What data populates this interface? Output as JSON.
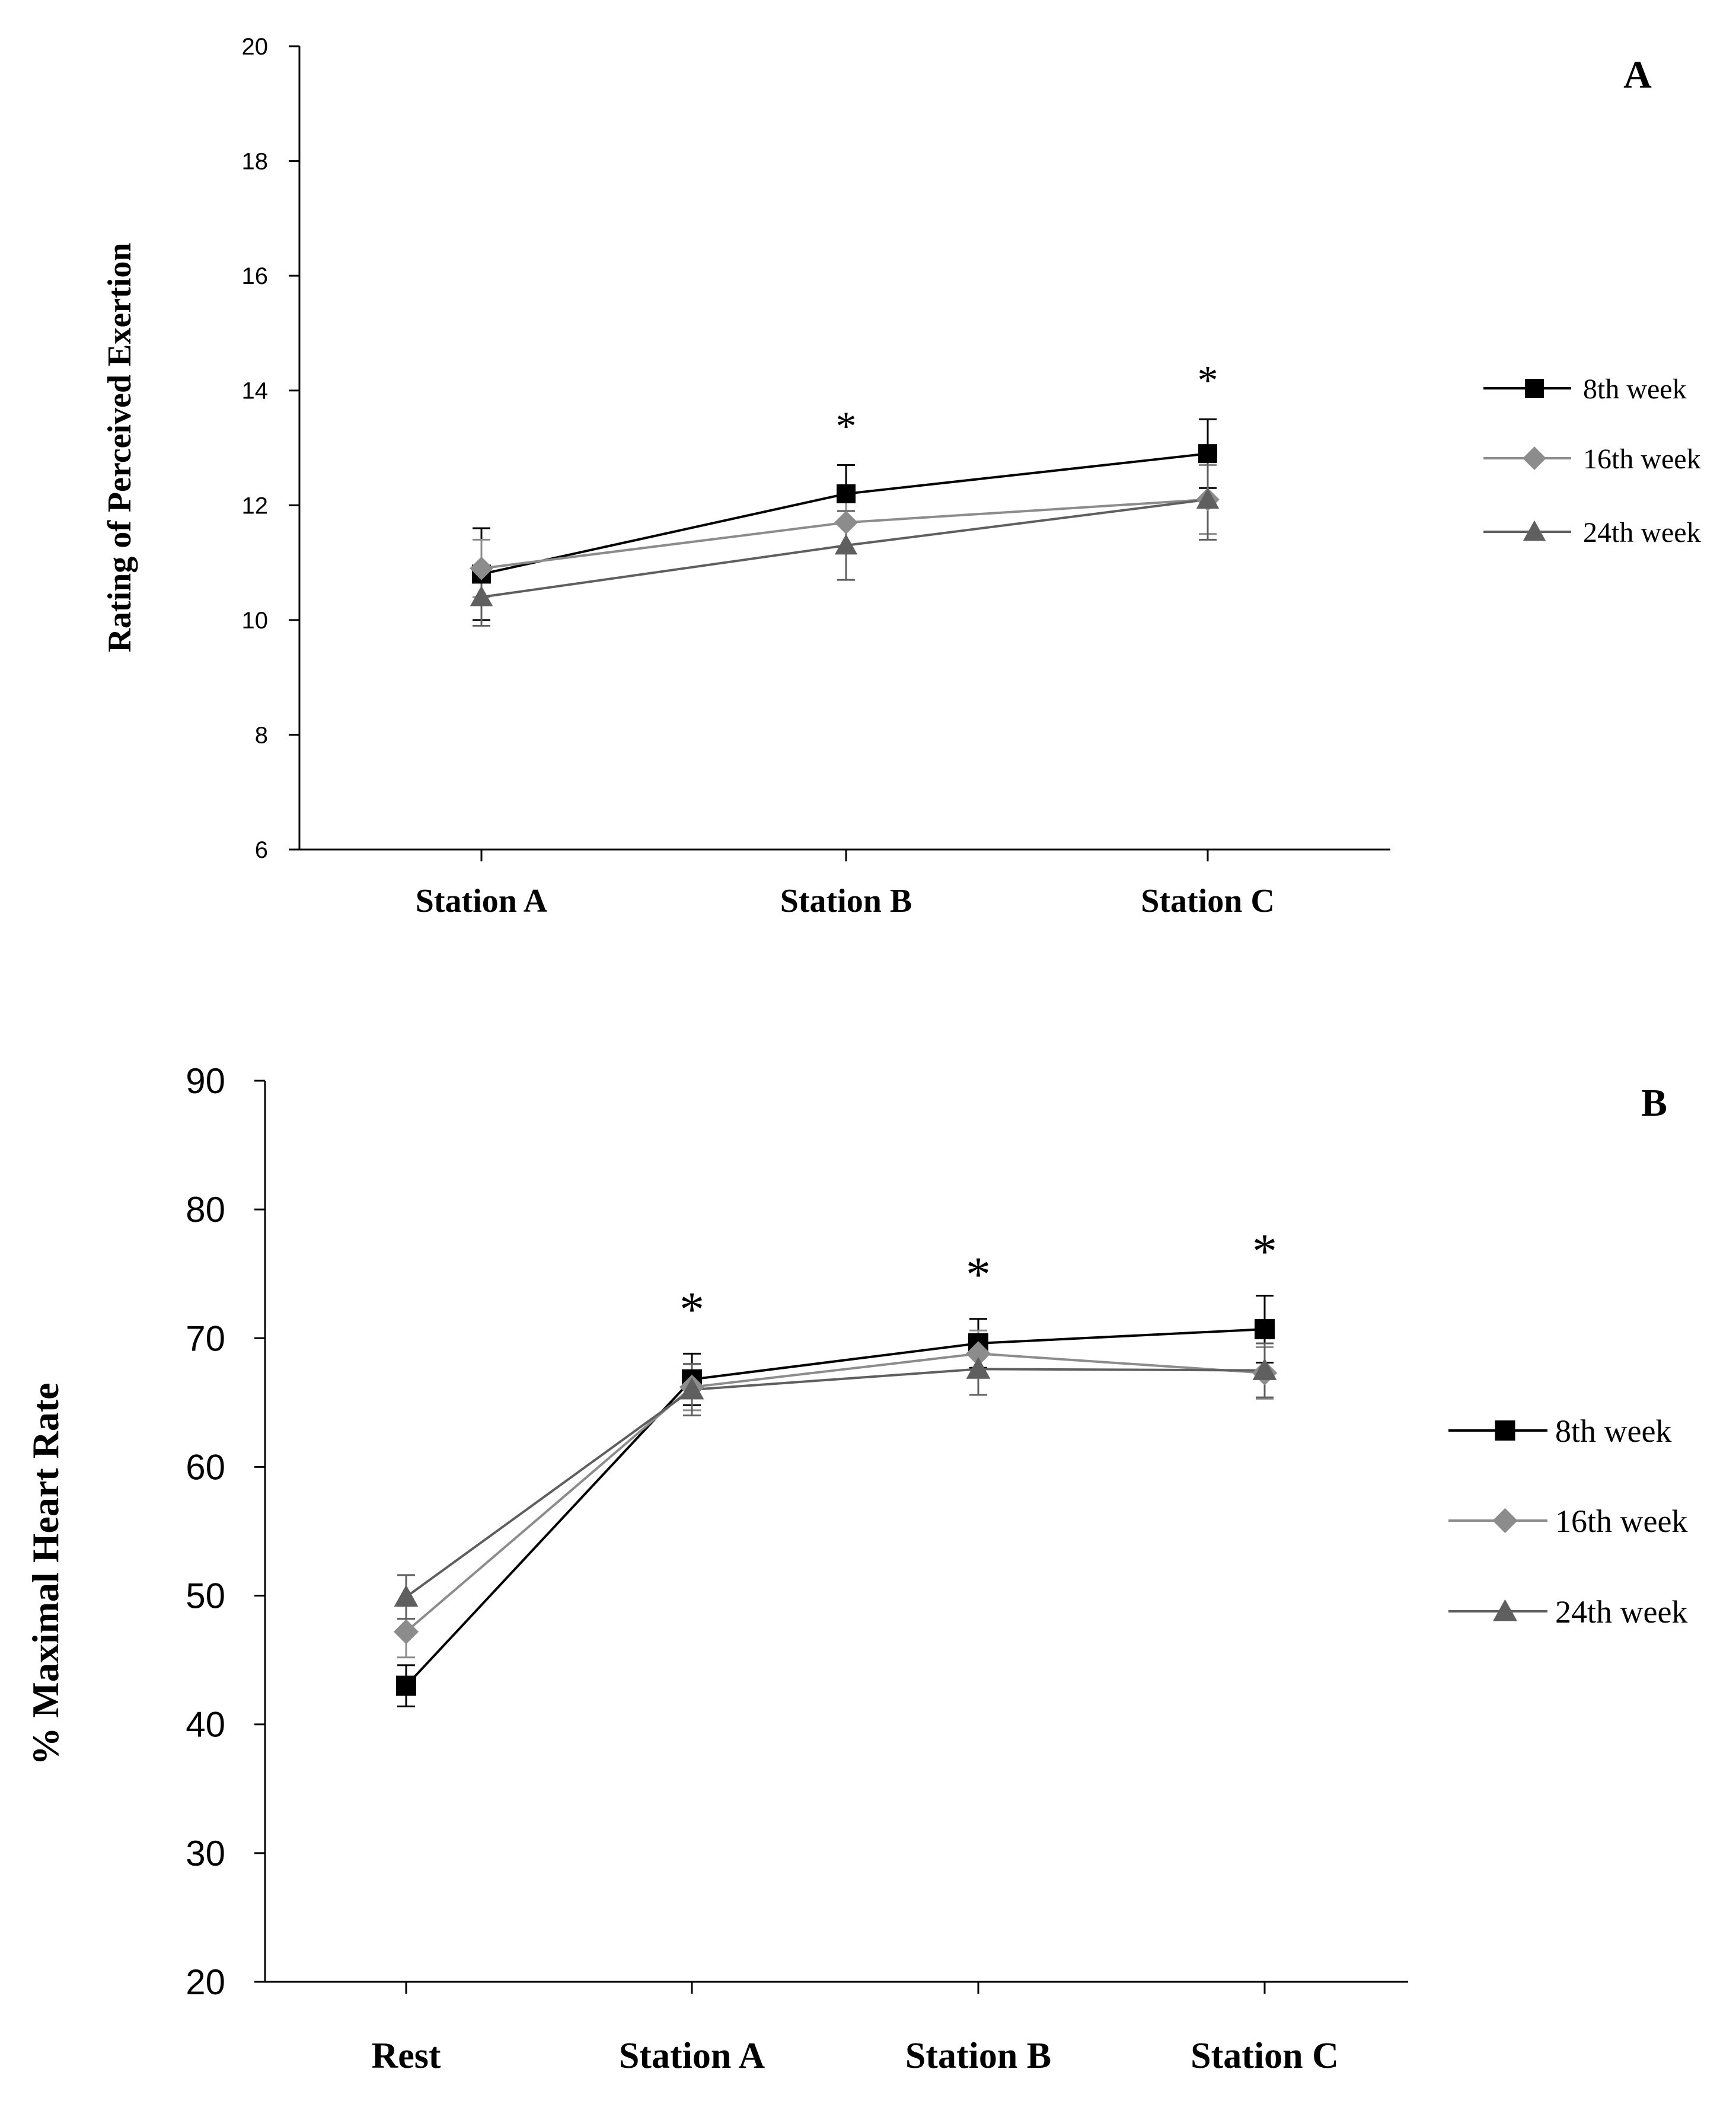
{
  "chart_data": [
    {
      "type": "line",
      "panel_label": "A",
      "title": "",
      "xlabel": "",
      "ylabel": "Rating of Perceived Exertion",
      "categories": [
        "Station A",
        "Station B",
        "Station C"
      ],
      "yticks": [
        "6",
        "8",
        "10",
        "12",
        "14",
        "16",
        "18",
        "20"
      ],
      "ylim": [
        6,
        20
      ],
      "grid": false,
      "legend_position": "right",
      "series": [
        {
          "name": "8th week",
          "marker": "square",
          "color": "#000000",
          "values": [
            10.8,
            12.2,
            12.9
          ],
          "errors": [
            0.8,
            0.5,
            0.6
          ]
        },
        {
          "name": "16th week",
          "marker": "diamond",
          "color": "#8c8c8c",
          "values": [
            10.9,
            11.7,
            12.1
          ],
          "errors": [
            0.5,
            0.5,
            0.6
          ]
        },
        {
          "name": "24th week",
          "marker": "triangle",
          "color": "#5f5f5f",
          "values": [
            10.4,
            11.3,
            12.1
          ],
          "errors": [
            0.5,
            0.6,
            0.7
          ]
        }
      ],
      "annotations": [
        {
          "category": "Station B",
          "text": "*"
        },
        {
          "category": "Station C",
          "text": "*"
        }
      ]
    },
    {
      "type": "line",
      "panel_label": "B",
      "title": "",
      "xlabel": "",
      "ylabel": "% Maximal Heart Rate",
      "categories": [
        "Rest",
        "Station A",
        "Station B",
        "Station C"
      ],
      "yticks": [
        "20",
        "30",
        "40",
        "50",
        "60",
        "70",
        "80",
        "90"
      ],
      "ylim": [
        20,
        90
      ],
      "grid": false,
      "legend_position": "right",
      "series": [
        {
          "name": "8th week",
          "marker": "square",
          "color": "#000000",
          "values": [
            43,
            66.8,
            69.6,
            70.7
          ],
          "errors": [
            1.6,
            2.0,
            1.9,
            2.6
          ]
        },
        {
          "name": "16th week",
          "marker": "diamond",
          "color": "#8c8c8c",
          "values": [
            47.2,
            66.2,
            68.8,
            67.3
          ],
          "errors": [
            2.0,
            1.8,
            1.8,
            2.0
          ]
        },
        {
          "name": "24th week",
          "marker": "triangle",
          "color": "#5f5f5f",
          "values": [
            49.9,
            66.0,
            67.6,
            67.5
          ],
          "errors": [
            1.7,
            2.0,
            2.0,
            2.1
          ]
        }
      ],
      "annotations": [
        {
          "category": "Station A",
          "text": "*"
        },
        {
          "category": "Station B",
          "text": "*"
        },
        {
          "category": "Station C",
          "text": "*"
        }
      ]
    }
  ]
}
